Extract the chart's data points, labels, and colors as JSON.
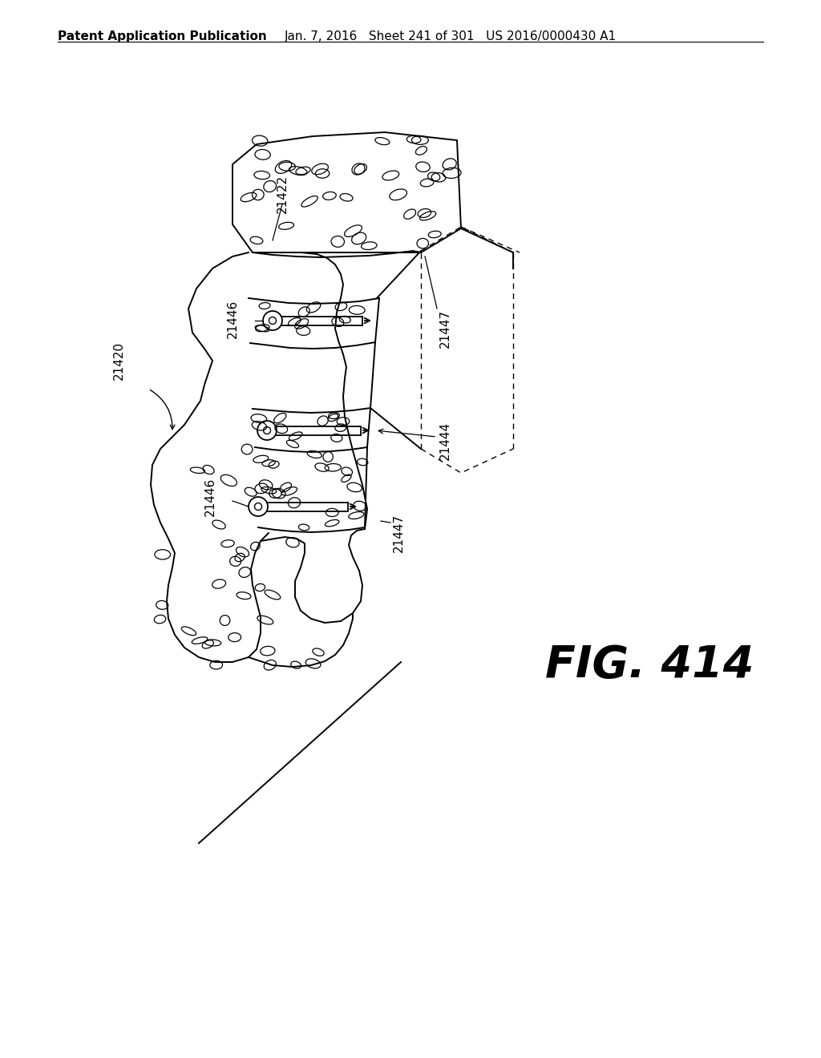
{
  "header_left": "Patent Application Publication",
  "header_right": "Jan. 7, 2016  Sheet 241 of 301  US 2016/0000430 A1",
  "fig_label": "FIG. 414",
  "background_color": "#ffffff",
  "line_color": "#000000",
  "fig_fontsize": 40,
  "header_fontsize": 11,
  "ref_fontsize": 11
}
